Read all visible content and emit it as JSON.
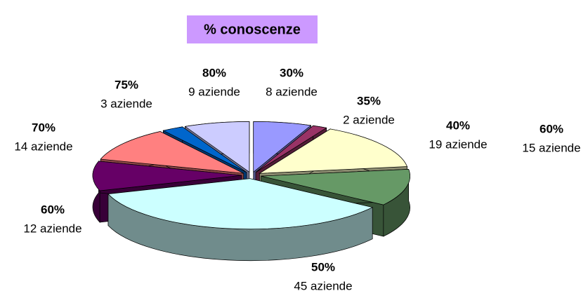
{
  "chart_data": {
    "type": "pie",
    "title": "% conoscenze",
    "categories": [
      "30%",
      "35%",
      "40%",
      "60%",
      "50%",
      "60%",
      "70%",
      "75%",
      "80%"
    ],
    "values": [
      8,
      2,
      19,
      15,
      45,
      12,
      14,
      3,
      9
    ],
    "value_labels": [
      "8 aziende",
      "2 aziende",
      "19 aziende",
      "15 aziende",
      "45 aziende",
      "12 aziende",
      "14 aziende",
      "3 aziende",
      "9 aziende"
    ],
    "colors": [
      "#9999ff",
      "#993366",
      "#ffffcc",
      "#669966",
      "#ccffff",
      "#660066",
      "#ff8080",
      "#0066cc",
      "#ccccff"
    ],
    "title_background": "#cc99ff"
  }
}
